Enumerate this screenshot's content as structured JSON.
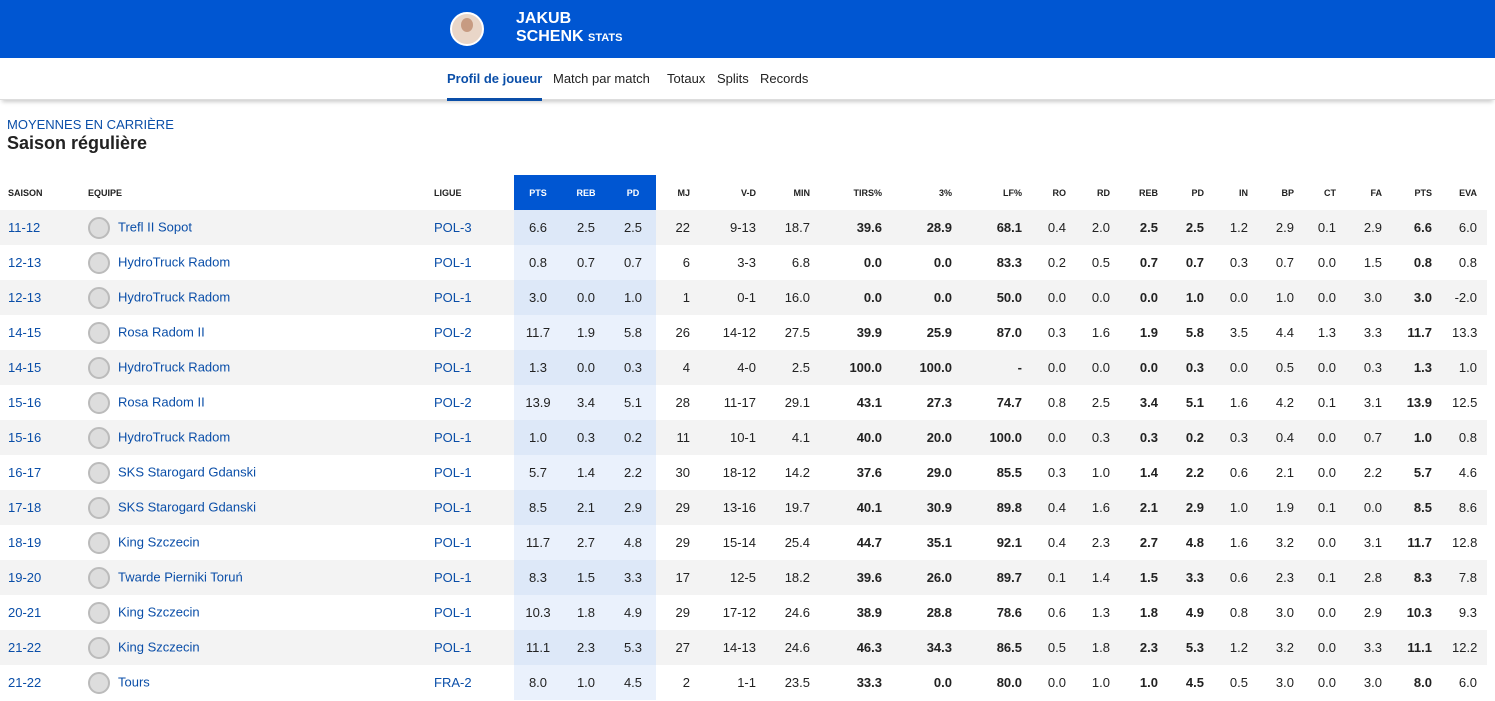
{
  "header": {
    "first_name": "JAKUB",
    "last_name": "SCHENK",
    "suffix": "STATS"
  },
  "nav": {
    "tabs": [
      "Profil de joueur",
      "Match par match",
      "Totaux",
      "Splits",
      "Records"
    ]
  },
  "section": {
    "kicker": "MOYENNES EN CARRIÈRE",
    "title": "Saison régulière"
  },
  "table": {
    "headers": [
      "SAISON",
      "EQUIPE",
      "LIGUE",
      "PTS",
      "REB",
      "PD",
      "MJ",
      "V-D",
      "MIN",
      "TIRS%",
      "3%",
      "LF%",
      "RO",
      "RD",
      "REB",
      "PD",
      "IN",
      "BP",
      "CT",
      "FA",
      "PTS",
      "EVA"
    ],
    "rows": [
      [
        "11-12",
        "Trefl II Sopot",
        "POL-3",
        "6.6",
        "2.5",
        "2.5",
        "22",
        "9-13",
        "18.7",
        "39.6",
        "28.9",
        "68.1",
        "0.4",
        "2.0",
        "2.5",
        "2.5",
        "1.2",
        "2.9",
        "0.1",
        "2.9",
        "6.6",
        "6.0"
      ],
      [
        "12-13",
        "HydroTruck Radom",
        "POL-1",
        "0.8",
        "0.7",
        "0.7",
        "6",
        "3-3",
        "6.8",
        "0.0",
        "0.0",
        "83.3",
        "0.2",
        "0.5",
        "0.7",
        "0.7",
        "0.3",
        "0.7",
        "0.0",
        "1.5",
        "0.8",
        "0.8"
      ],
      [
        "12-13",
        "HydroTruck Radom",
        "POL-1",
        "3.0",
        "0.0",
        "1.0",
        "1",
        "0-1",
        "16.0",
        "0.0",
        "0.0",
        "50.0",
        "0.0",
        "0.0",
        "0.0",
        "1.0",
        "0.0",
        "1.0",
        "0.0",
        "3.0",
        "3.0",
        "-2.0"
      ],
      [
        "14-15",
        "Rosa Radom II",
        "POL-2",
        "11.7",
        "1.9",
        "5.8",
        "26",
        "14-12",
        "27.5",
        "39.9",
        "25.9",
        "87.0",
        "0.3",
        "1.6",
        "1.9",
        "5.8",
        "3.5",
        "4.4",
        "1.3",
        "3.3",
        "11.7",
        "13.3"
      ],
      [
        "14-15",
        "HydroTruck Radom",
        "POL-1",
        "1.3",
        "0.0",
        "0.3",
        "4",
        "4-0",
        "2.5",
        "100.0",
        "100.0",
        "-",
        "0.0",
        "0.0",
        "0.0",
        "0.3",
        "0.0",
        "0.5",
        "0.0",
        "0.3",
        "1.3",
        "1.0"
      ],
      [
        "15-16",
        "Rosa Radom II",
        "POL-2",
        "13.9",
        "3.4",
        "5.1",
        "28",
        "11-17",
        "29.1",
        "43.1",
        "27.3",
        "74.7",
        "0.8",
        "2.5",
        "3.4",
        "5.1",
        "1.6",
        "4.2",
        "0.1",
        "3.1",
        "13.9",
        "12.5"
      ],
      [
        "15-16",
        "HydroTruck Radom",
        "POL-1",
        "1.0",
        "0.3",
        "0.2",
        "11",
        "10-1",
        "4.1",
        "40.0",
        "20.0",
        "100.0",
        "0.0",
        "0.3",
        "0.3",
        "0.2",
        "0.3",
        "0.4",
        "0.0",
        "0.7",
        "1.0",
        "0.8"
      ],
      [
        "16-17",
        "SKS Starogard Gdanski",
        "POL-1",
        "5.7",
        "1.4",
        "2.2",
        "30",
        "18-12",
        "14.2",
        "37.6",
        "29.0",
        "85.5",
        "0.3",
        "1.0",
        "1.4",
        "2.2",
        "0.6",
        "2.1",
        "0.0",
        "2.2",
        "5.7",
        "4.6"
      ],
      [
        "17-18",
        "SKS Starogard Gdanski",
        "POL-1",
        "8.5",
        "2.1",
        "2.9",
        "29",
        "13-16",
        "19.7",
        "40.1",
        "30.9",
        "89.8",
        "0.4",
        "1.6",
        "2.1",
        "2.9",
        "1.0",
        "1.9",
        "0.1",
        "0.0",
        "8.5",
        "8.6"
      ],
      [
        "18-19",
        "King Szczecin",
        "POL-1",
        "11.7",
        "2.7",
        "4.8",
        "29",
        "15-14",
        "25.4",
        "44.7",
        "35.1",
        "92.1",
        "0.4",
        "2.3",
        "2.7",
        "4.8",
        "1.6",
        "3.2",
        "0.0",
        "3.1",
        "11.7",
        "12.8"
      ],
      [
        "19-20",
        "Twarde Pierniki Toruń",
        "POL-1",
        "8.3",
        "1.5",
        "3.3",
        "17",
        "12-5",
        "18.2",
        "39.6",
        "26.0",
        "89.7",
        "0.1",
        "1.4",
        "1.5",
        "3.3",
        "0.6",
        "2.3",
        "0.1",
        "2.8",
        "8.3",
        "7.8"
      ],
      [
        "20-21",
        "King Szczecin",
        "POL-1",
        "10.3",
        "1.8",
        "4.9",
        "29",
        "17-12",
        "24.6",
        "38.9",
        "28.8",
        "78.6",
        "0.6",
        "1.3",
        "1.8",
        "4.9",
        "0.8",
        "3.0",
        "0.0",
        "2.9",
        "10.3",
        "9.3"
      ],
      [
        "21-22",
        "King Szczecin",
        "POL-1",
        "11.1",
        "2.3",
        "5.3",
        "27",
        "14-13",
        "24.6",
        "46.3",
        "34.3",
        "86.5",
        "0.5",
        "1.8",
        "2.3",
        "5.3",
        "1.2",
        "3.2",
        "0.0",
        "3.3",
        "11.1",
        "12.2"
      ],
      [
        "21-22",
        "Tours",
        "FRA-2",
        "8.0",
        "1.0",
        "4.5",
        "2",
        "1-1",
        "23.5",
        "33.3",
        "0.0",
        "80.0",
        "0.0",
        "1.0",
        "1.0",
        "4.5",
        "0.5",
        "3.0",
        "0.0",
        "3.0",
        "8.0",
        "6.0"
      ]
    ]
  }
}
